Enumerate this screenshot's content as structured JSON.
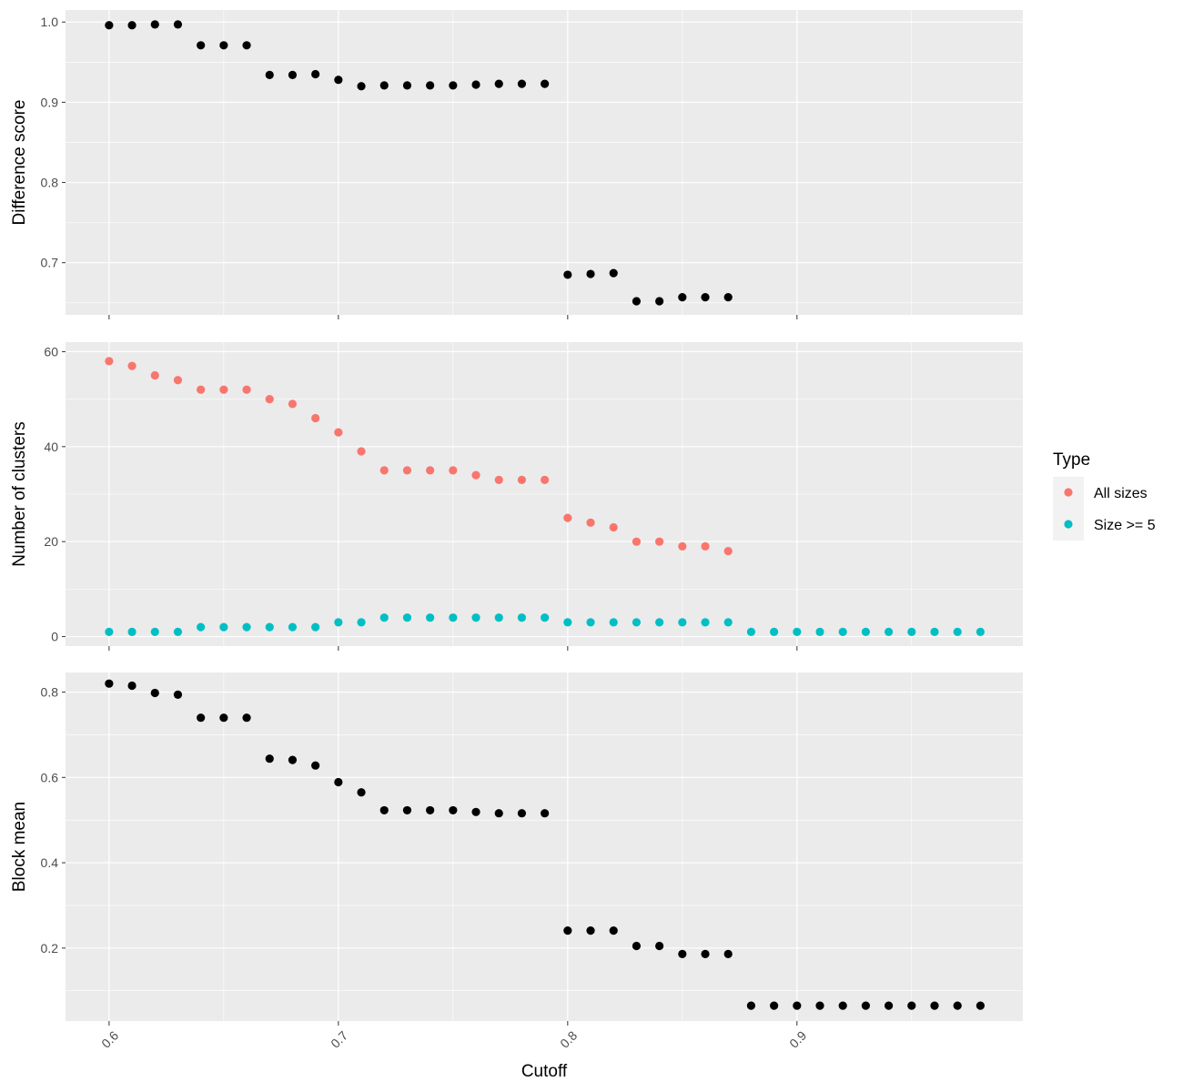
{
  "chart_data": [
    {
      "type": "scatter",
      "panel": "top",
      "xlabel": "Cutoff",
      "ylabel": "Difference score",
      "xlim": [
        0.581,
        0.9985
      ],
      "ylim": [
        0.635,
        1.015
      ],
      "xticks": [
        0.6,
        0.7,
        0.8,
        0.9
      ],
      "xtick_labels": [
        "0.6",
        "0.7",
        "0.8",
        "0.9"
      ],
      "yticks": [
        0.7,
        0.8,
        0.9,
        1.0
      ],
      "ytick_labels": [
        "0.7",
        "0.8",
        "0.9",
        "1.0"
      ],
      "grid": true,
      "series": [
        {
          "name": "Difference score",
          "color": "#000000",
          "x": [
            0.6,
            0.61,
            0.62,
            0.63,
            0.64,
            0.65,
            0.66,
            0.67,
            0.68,
            0.69,
            0.7,
            0.71,
            0.72,
            0.73,
            0.74,
            0.75,
            0.76,
            0.77,
            0.78,
            0.79,
            0.8,
            0.81,
            0.82,
            0.83,
            0.84,
            0.85,
            0.86,
            0.87
          ],
          "values": [
            0.996,
            0.996,
            0.997,
            0.997,
            0.971,
            0.971,
            0.971,
            0.934,
            0.934,
            0.935,
            0.928,
            0.92,
            0.921,
            0.921,
            0.921,
            0.921,
            0.922,
            0.923,
            0.923,
            0.923,
            0.685,
            0.686,
            0.687,
            0.652,
            0.652,
            0.657,
            0.657,
            0.657
          ]
        }
      ]
    },
    {
      "type": "scatter",
      "panel": "middle",
      "xlabel": "Cutoff",
      "ylabel": "Number of clusters",
      "xlim": [
        0.581,
        0.9985
      ],
      "ylim": [
        -2,
        62
      ],
      "xticks": [
        0.6,
        0.7,
        0.8,
        0.9
      ],
      "xtick_labels": [
        "0.6",
        "0.7",
        "0.8",
        "0.9"
      ],
      "yticks": [
        0,
        20,
        40,
        60
      ],
      "ytick_labels": [
        "0",
        "20",
        "40",
        "60"
      ],
      "grid": true,
      "legend_placement": "right",
      "legend_title": "Type",
      "series": [
        {
          "name": "All sizes",
          "color": "#F8766D",
          "x": [
            0.6,
            0.61,
            0.62,
            0.63,
            0.64,
            0.65,
            0.66,
            0.67,
            0.68,
            0.69,
            0.7,
            0.71,
            0.72,
            0.73,
            0.74,
            0.75,
            0.76,
            0.77,
            0.78,
            0.79,
            0.8,
            0.81,
            0.82,
            0.83,
            0.84,
            0.85,
            0.86,
            0.87
          ],
          "values": [
            58,
            57,
            55,
            54,
            52,
            52,
            52,
            50,
            49,
            46,
            43,
            39,
            35,
            35,
            35,
            35,
            34,
            33,
            33,
            33,
            25,
            24,
            23,
            20,
            20,
            19,
            19,
            18
          ]
        },
        {
          "name": "Size >= 5",
          "color": "#00BFC4",
          "x": [
            0.6,
            0.61,
            0.62,
            0.63,
            0.64,
            0.65,
            0.66,
            0.67,
            0.68,
            0.69,
            0.7,
            0.71,
            0.72,
            0.73,
            0.74,
            0.75,
            0.76,
            0.77,
            0.78,
            0.79,
            0.8,
            0.81,
            0.82,
            0.83,
            0.84,
            0.85,
            0.86,
            0.87,
            0.88,
            0.89,
            0.9,
            0.91,
            0.92,
            0.93,
            0.94,
            0.95,
            0.96,
            0.97,
            0.98
          ],
          "values": [
            1,
            1,
            1,
            1,
            2,
            2,
            2,
            2,
            2,
            2,
            3,
            3,
            4,
            4,
            4,
            4,
            4,
            4,
            4,
            4,
            3,
            3,
            3,
            3,
            3,
            3,
            3,
            3,
            1,
            1,
            1,
            1,
            1,
            1,
            1,
            1,
            1,
            1,
            1
          ]
        }
      ]
    },
    {
      "type": "scatter",
      "panel": "bottom",
      "xlabel": "Cutoff",
      "ylabel": "Block mean",
      "xlim": [
        0.581,
        0.9985
      ],
      "ylim": [
        0.029,
        0.846
      ],
      "xticks": [
        0.6,
        0.7,
        0.8,
        0.9
      ],
      "xtick_labels": [
        "0.6",
        "0.7",
        "0.8",
        "0.9"
      ],
      "yticks": [
        0.2,
        0.4,
        0.6,
        0.8
      ],
      "ytick_labels": [
        "0.2",
        "0.4",
        "0.6",
        "0.8"
      ],
      "grid": true,
      "series": [
        {
          "name": "Block mean",
          "color": "#000000",
          "x": [
            0.6,
            0.61,
            0.62,
            0.63,
            0.64,
            0.65,
            0.66,
            0.67,
            0.68,
            0.69,
            0.7,
            0.71,
            0.72,
            0.73,
            0.74,
            0.75,
            0.76,
            0.77,
            0.78,
            0.79,
            0.8,
            0.81,
            0.82,
            0.83,
            0.84,
            0.85,
            0.86,
            0.87,
            0.88,
            0.89,
            0.9,
            0.91,
            0.92,
            0.93,
            0.94,
            0.95,
            0.96,
            0.97,
            0.98
          ],
          "values": [
            0.82,
            0.815,
            0.798,
            0.794,
            0.74,
            0.74,
            0.74,
            0.644,
            0.641,
            0.628,
            0.589,
            0.565,
            0.523,
            0.523,
            0.523,
            0.523,
            0.519,
            0.516,
            0.516,
            0.516,
            0.241,
            0.241,
            0.241,
            0.205,
            0.205,
            0.186,
            0.186,
            0.186,
            0.065,
            0.065,
            0.065,
            0.065,
            0.065,
            0.065,
            0.065,
            0.065,
            0.065,
            0.065,
            0.065
          ]
        }
      ]
    }
  ],
  "x_axis_title": "Cutoff",
  "legend": {
    "title": "Type",
    "items": [
      {
        "label": "All sizes",
        "color": "#F8766D"
      },
      {
        "label": "Size >= 5",
        "color": "#00BFC4"
      }
    ]
  },
  "colors": {
    "panel_background": "#EBEBEB",
    "grid_major": "#FFFFFF",
    "point_default": "#000000",
    "tick_text": "#4D4D4D",
    "tick_line": "#333333"
  }
}
